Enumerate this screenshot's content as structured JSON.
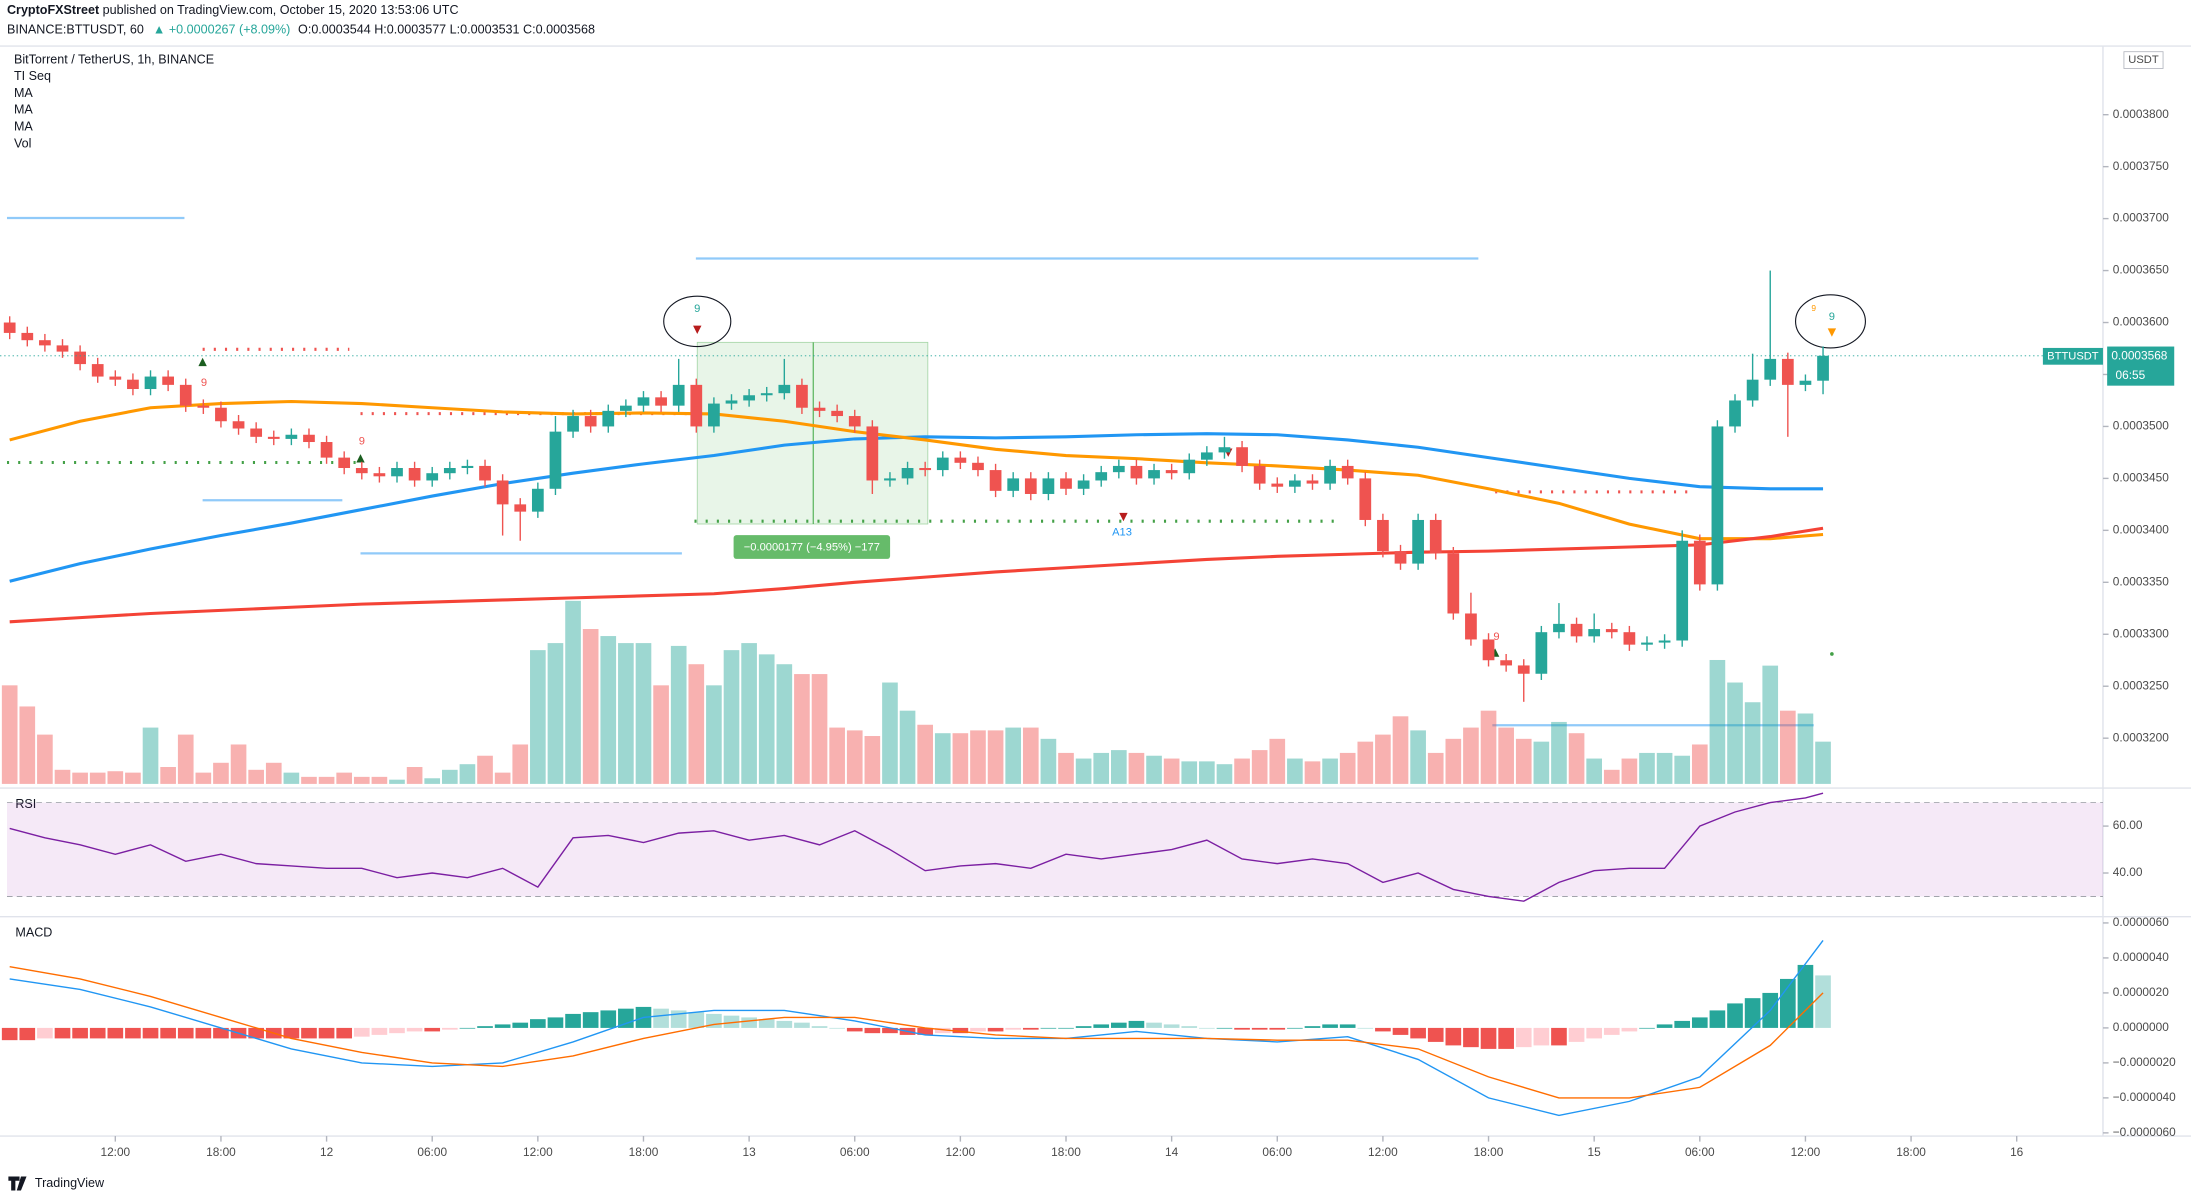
{
  "chart_data": {
    "type": "candlestick",
    "author": "CryptoFXStreet",
    "published": "published on TradingView.com, October 15, 2020 13:53:06 UTC",
    "symbol": "BINANCE:BTTUSDT, 60",
    "change": "▲ +0.0000267 (+8.09%)",
    "ohlc_header": [
      "O:0.0003544",
      "H:0.0003577",
      "L:0.0003531",
      "C:0.0003568"
    ],
    "title": "BitTorrent / TetherUS, 1h, BINANCE",
    "indicators": [
      "TI Seq"
    ],
    "currency": "USDT",
    "price_tag": {
      "symbol": "BTTUSDT",
      "price": "0.0003568",
      "countdown": "06:55"
    },
    "footer": "TradingView",
    "annotations": [
      "9",
      "9",
      "9",
      "9",
      "9",
      "9",
      "A13",
      "−0.0000177 (−4.95%) −177"
    ],
    "up_color": "#26a69a",
    "down_color": "#ef5350",
    "grid": false,
    "xlim": [
      -0.55,
      118.9
    ],
    "xticks": [
      {
        "value": 6,
        "label": "12:00"
      },
      {
        "value": 12,
        "label": "18:00"
      },
      {
        "value": 18,
        "label": "12"
      },
      {
        "value": 24,
        "label": "06:00"
      },
      {
        "value": 30,
        "label": "12:00"
      },
      {
        "value": 36,
        "label": "18:00"
      },
      {
        "value": 42,
        "label": "13"
      },
      {
        "value": 48,
        "label": "06:00"
      },
      {
        "value": 54,
        "label": "12:00"
      },
      {
        "value": 60,
        "label": "18:00"
      },
      {
        "value": 66,
        "label": "14"
      },
      {
        "value": 72,
        "label": "06:00"
      },
      {
        "value": 78,
        "label": "12:00"
      },
      {
        "value": 84,
        "label": "18:00"
      },
      {
        "value": 90,
        "label": "15"
      },
      {
        "value": 96,
        "label": "06:00"
      },
      {
        "value": 102,
        "label": "12:00"
      },
      {
        "value": 108,
        "label": "18:00"
      },
      {
        "value": 114,
        "label": "16"
      }
    ],
    "ylim": [
      0.0003156,
      0.0003866
    ],
    "yticks": [
      {
        "value": 0.00032,
        "label": "0.0003200"
      },
      {
        "value": 0.000325,
        "label": "0.0003250"
      },
      {
        "value": 0.00033,
        "label": "0.0003300"
      },
      {
        "value": 0.000335,
        "label": "0.0003350"
      },
      {
        "value": 0.00034,
        "label": "0.0003400"
      },
      {
        "value": 0.000345,
        "label": "0.0003450"
      },
      {
        "value": 0.00035,
        "label": "0.0003500"
      },
      {
        "value": 0.000355,
        "label": "0.0003550"
      },
      {
        "value": 0.00036,
        "label": "0.0003600"
      },
      {
        "value": 0.000365,
        "label": "0.0003650"
      },
      {
        "value": 0.00037,
        "label": "0.0003700"
      },
      {
        "value": 0.000375,
        "label": "0.0003750"
      },
      {
        "value": 0.00038,
        "label": "0.0003800"
      }
    ],
    "open": [
      0.00036,
      0.000359,
      0.0003583,
      0.0003578,
      0.0003572,
      0.000356,
      0.0003548,
      0.0003545,
      0.0003536,
      0.0003548,
      0.000354,
      0.000352,
      0.0003518,
      0.0003505,
      0.0003498,
      0.000349,
      0.0003488,
      0.0003492,
      0.0003485,
      0.000347,
      0.000346,
      0.0003455,
      0.0003452,
      0.000346,
      0.0003448,
      0.0003455,
      0.000346,
      0.0003462,
      0.0003448,
      0.0003425,
      0.0003418,
      0.000344,
      0.0003495,
      0.000351,
      0.00035,
      0.0003515,
      0.000352,
      0.0003528,
      0.000352,
      0.000354,
      0.00035,
      0.0003522,
      0.0003525,
      0.000353,
      0.0003532,
      0.000354,
      0.0003518,
      0.0003515,
      0.000351,
      0.00035,
      0.0003448,
      0.000345,
      0.000346,
      0.0003458,
      0.000347,
      0.0003465,
      0.0003458,
      0.0003438,
      0.000345,
      0.0003435,
      0.000345,
      0.000344,
      0.0003448,
      0.0003456,
      0.0003462,
      0.000345,
      0.0003458,
      0.0003455,
      0.0003468,
      0.0003475,
      0.000348,
      0.0003462,
      0.0003445,
      0.0003442,
      0.0003448,
      0.0003445,
      0.0003462,
      0.000345,
      0.000341,
      0.000338,
      0.0003368,
      0.000341,
      0.0003378,
      0.000332,
      0.0003295,
      0.0003275,
      0.000327,
      0.0003262,
      0.0003302,
      0.000331,
      0.0003298,
      0.0003305,
      0.0003302,
      0.000329,
      0.0003292,
      0.0003294,
      0.000339,
      0.0003348,
      0.00035,
      0.0003525,
      0.0003545,
      0.0003565,
      0.000354,
      0.0003544
    ],
    "high": [
      0.0003606,
      0.0003596,
      0.0003589,
      0.0003584,
      0.0003578,
      0.0003566,
      0.0003554,
      0.0003551,
      0.0003554,
      0.0003554,
      0.0003546,
      0.0003526,
      0.0003524,
      0.0003511,
      0.0003504,
      0.0003496,
      0.0003498,
      0.0003498,
      0.0003491,
      0.0003476,
      0.0003466,
      0.0003461,
      0.0003466,
      0.0003466,
      0.0003461,
      0.0003466,
      0.0003468,
      0.0003468,
      0.0003454,
      0.0003431,
      0.0003446,
      0.000351,
      0.0003516,
      0.0003516,
      0.0003521,
      0.0003526,
      0.0003534,
      0.0003534,
      0.0003565,
      0.0003546,
      0.0003528,
      0.0003531,
      0.0003536,
      0.0003538,
      0.0003565,
      0.0003546,
      0.0003524,
      0.0003521,
      0.0003516,
      0.0003506,
      0.0003456,
      0.0003466,
      0.0003466,
      0.0003476,
      0.0003476,
      0.0003471,
      0.0003464,
      0.0003456,
      0.0003456,
      0.0003456,
      0.0003456,
      0.0003454,
      0.0003462,
      0.0003468,
      0.0003468,
      0.0003464,
      0.0003464,
      0.0003474,
      0.0003481,
      0.000349,
      0.0003486,
      0.0003468,
      0.0003451,
      0.0003454,
      0.0003454,
      0.0003468,
      0.0003468,
      0.0003456,
      0.0003416,
      0.0003386,
      0.0003416,
      0.0003416,
      0.0003384,
      0.000334,
      0.0003301,
      0.0003281,
      0.0003276,
      0.0003308,
      0.000333,
      0.0003316,
      0.000332,
      0.0003311,
      0.0003308,
      0.0003298,
      0.00033,
      0.00034,
      0.0003396,
      0.0003506,
      0.0003531,
      0.000357,
      0.000365,
      0.0003571,
      0.000355,
      0.0003577
    ],
    "low": [
      0.0003584,
      0.0003577,
      0.0003572,
      0.0003566,
      0.0003554,
      0.0003542,
      0.0003539,
      0.000353,
      0.000353,
      0.0003534,
      0.0003514,
      0.0003512,
      0.0003499,
      0.0003492,
      0.0003484,
      0.0003482,
      0.0003482,
      0.0003479,
      0.0003464,
      0.0003454,
      0.0003449,
      0.0003446,
      0.0003446,
      0.0003442,
      0.0003442,
      0.0003449,
      0.0003454,
      0.0003442,
      0.0003395,
      0.000339,
      0.0003412,
      0.0003434,
      0.0003489,
      0.0003494,
      0.0003494,
      0.0003509,
      0.0003514,
      0.0003514,
      0.0003514,
      0.0003494,
      0.0003494,
      0.0003516,
      0.0003519,
      0.0003524,
      0.0003526,
      0.0003512,
      0.0003509,
      0.0003504,
      0.0003494,
      0.0003435,
      0.0003442,
      0.0003444,
      0.0003452,
      0.0003452,
      0.0003459,
      0.0003452,
      0.0003432,
      0.0003432,
      0.0003429,
      0.0003429,
      0.0003434,
      0.0003434,
      0.0003442,
      0.000345,
      0.0003444,
      0.0003444,
      0.0003449,
      0.0003449,
      0.0003462,
      0.0003469,
      0.0003456,
      0.0003439,
      0.0003436,
      0.0003436,
      0.0003439,
      0.0003439,
      0.0003444,
      0.0003404,
      0.0003374,
      0.0003362,
      0.0003362,
      0.0003372,
      0.0003314,
      0.0003289,
      0.0003269,
      0.0003264,
      0.0003235,
      0.0003256,
      0.0003296,
      0.0003292,
      0.0003292,
      0.0003296,
      0.0003284,
      0.0003284,
      0.0003286,
      0.0003288,
      0.0003342,
      0.0003342,
      0.0003494,
      0.0003519,
      0.0003539,
      0.000349,
      0.0003534,
      0.0003531
    ],
    "close": [
      0.000359,
      0.0003583,
      0.0003578,
      0.0003572,
      0.000356,
      0.0003548,
      0.0003545,
      0.0003536,
      0.0003548,
      0.000354,
      0.000352,
      0.0003518,
      0.0003505,
      0.0003498,
      0.000349,
      0.0003488,
      0.0003492,
      0.0003485,
      0.000347,
      0.000346,
      0.0003455,
      0.0003452,
      0.000346,
      0.0003448,
      0.0003455,
      0.000346,
      0.0003462,
      0.0003448,
      0.0003425,
      0.0003418,
      0.000344,
      0.0003495,
      0.000351,
      0.00035,
      0.0003515,
      0.000352,
      0.0003528,
      0.000352,
      0.000354,
      0.00035,
      0.0003522,
      0.0003525,
      0.000353,
      0.0003532,
      0.000354,
      0.0003518,
      0.0003515,
      0.000351,
      0.00035,
      0.0003448,
      0.000345,
      0.000346,
      0.0003458,
      0.000347,
      0.0003465,
      0.0003458,
      0.0003438,
      0.000345,
      0.0003435,
      0.000345,
      0.000344,
      0.0003448,
      0.0003456,
      0.0003462,
      0.000345,
      0.0003458,
      0.0003455,
      0.0003468,
      0.0003475,
      0.000348,
      0.0003462,
      0.0003445,
      0.0003442,
      0.0003448,
      0.0003445,
      0.0003462,
      0.000345,
      0.000341,
      0.000338,
      0.0003368,
      0.000341,
      0.0003378,
      0.000332,
      0.0003295,
      0.0003275,
      0.000327,
      0.0003262,
      0.0003302,
      0.000331,
      0.0003298,
      0.0003305,
      0.0003302,
      0.000329,
      0.0003292,
      0.0003294,
      0.000339,
      0.0003348,
      0.00035,
      0.0003525,
      0.0003545,
      0.0003565,
      0.000354,
      0.0003544,
      0.0003568
    ],
    "series": [
      {
        "name": "MA",
        "color": "#2196f3",
        "x": [
          0,
          4,
          8,
          12,
          16,
          20,
          24,
          28,
          32,
          36,
          40,
          44,
          48,
          52,
          56,
          60,
          64,
          68,
          72,
          76,
          80,
          84,
          88,
          92,
          96,
          100,
          103
        ],
        "values": [
          0.0003351,
          0.0003368,
          0.0003382,
          0.0003395,
          0.0003407,
          0.000342,
          0.0003433,
          0.0003445,
          0.0003455,
          0.0003464,
          0.0003472,
          0.0003482,
          0.0003488,
          0.000349,
          0.0003489,
          0.000349,
          0.0003492,
          0.0003493,
          0.0003492,
          0.0003487,
          0.000348,
          0.000347,
          0.000346,
          0.000345,
          0.0003442,
          0.000344,
          0.000344
        ]
      },
      {
        "name": "MA",
        "color": "#ff9800",
        "x": [
          0,
          4,
          8,
          12,
          16,
          20,
          24,
          28,
          32,
          36,
          40,
          44,
          48,
          52,
          56,
          60,
          64,
          68,
          72,
          76,
          80,
          84,
          88,
          92,
          96,
          100,
          103
        ],
        "values": [
          0.0003487,
          0.0003505,
          0.0003518,
          0.0003522,
          0.0003524,
          0.0003522,
          0.0003518,
          0.0003514,
          0.0003512,
          0.0003513,
          0.0003512,
          0.0003505,
          0.0003495,
          0.0003487,
          0.0003478,
          0.0003472,
          0.0003469,
          0.0003465,
          0.0003462,
          0.0003458,
          0.0003453,
          0.000344,
          0.0003426,
          0.0003406,
          0.0003392,
          0.0003392,
          0.0003396
        ]
      },
      {
        "name": "MA",
        "color": "#f44336",
        "x": [
          0,
          4,
          8,
          12,
          16,
          20,
          24,
          28,
          32,
          36,
          40,
          44,
          48,
          52,
          56,
          60,
          64,
          68,
          72,
          76,
          80,
          84,
          88,
          92,
          96,
          100,
          103
        ],
        "values": [
          0.0003312,
          0.0003316,
          0.000332,
          0.0003323,
          0.0003326,
          0.0003329,
          0.0003331,
          0.0003333,
          0.0003335,
          0.0003337,
          0.0003339,
          0.0003344,
          0.000335,
          0.0003355,
          0.000336,
          0.0003364,
          0.0003368,
          0.0003372,
          0.0003375,
          0.0003377,
          0.0003379,
          0.000338,
          0.0003382,
          0.0003384,
          0.0003386,
          0.0003394,
          0.0003402
        ]
      }
    ],
    "volume": {
      "name": "Vol",
      "values": [
        70,
        55,
        35,
        10,
        8,
        8,
        9,
        8,
        40,
        12,
        35,
        8,
        15,
        28,
        10,
        15,
        8,
        5,
        5,
        8,
        5,
        5,
        3,
        12,
        4,
        10,
        14,
        20,
        8,
        28,
        95,
        100,
        130,
        110,
        105,
        100,
        100,
        70,
        98,
        85,
        70,
        95,
        100,
        92,
        85,
        78,
        78,
        40,
        38,
        34,
        72,
        52,
        42,
        36,
        36,
        38,
        38,
        40,
        40,
        32,
        22,
        18,
        22,
        24,
        22,
        20,
        18,
        16,
        16,
        14,
        18,
        24,
        32,
        18,
        16,
        18,
        22,
        30,
        35,
        48,
        38,
        22,
        32,
        40,
        52,
        40,
        32,
        30,
        44,
        36,
        18,
        10,
        18,
        22,
        22,
        20,
        28,
        88,
        72,
        58,
        84,
        52,
        50,
        30
      ]
    },
    "rsi": {
      "title": "RSI",
      "color": "#7b1fa2",
      "band": [
        30,
        70
      ],
      "ylim": [
        22,
        75
      ],
      "yticks": [
        {
          "value": 60,
          "label": "60.00"
        },
        {
          "value": 40,
          "label": "40.00"
        }
      ],
      "x": [
        0,
        2,
        4,
        6,
        8,
        10,
        12,
        14,
        16,
        18,
        20,
        22,
        24,
        26,
        28,
        30,
        32,
        34,
        36,
        38,
        40,
        42,
        44,
        46,
        48,
        50,
        52,
        54,
        56,
        58,
        60,
        62,
        64,
        66,
        68,
        70,
        72,
        74,
        76,
        78,
        80,
        82,
        84,
        86,
        88,
        90,
        92,
        94,
        96,
        98,
        100,
        102,
        103
      ],
      "values": [
        59,
        55,
        52,
        48,
        52,
        45,
        48,
        44,
        43,
        42,
        42,
        38,
        40,
        38,
        42,
        34,
        55,
        56,
        53,
        57,
        58,
        54,
        56,
        52,
        58,
        50,
        41,
        43,
        44,
        42,
        48,
        46,
        48,
        50,
        54,
        46,
        44,
        46,
        44,
        36,
        40,
        33,
        30,
        28,
        36,
        41,
        42,
        42,
        60,
        66,
        70,
        72,
        74
      ]
    },
    "macd": {
      "title": "MACD",
      "macd_color": "#2196f3",
      "signal_color": "#ff6d00",
      "ylim": [
        -6.1e-06,
        6.2e-06
      ],
      "yticks": [
        {
          "value": 6e-06,
          "label": "0.0000060"
        },
        {
          "value": 4e-06,
          "label": "0.0000040"
        },
        {
          "value": 2e-06,
          "label": "0.0000020"
        },
        {
          "value": 0,
          "label": "0.0000000"
        },
        {
          "value": -2e-06,
          "label": "−0.0000020"
        },
        {
          "value": -4e-06,
          "label": "−0.0000040"
        },
        {
          "value": -6e-06,
          "label": "−0.0000060"
        }
      ],
      "x": [
        0,
        4,
        8,
        12,
        16,
        20,
        24,
        28,
        32,
        36,
        40,
        44,
        48,
        52,
        56,
        60,
        64,
        68,
        72,
        76,
        80,
        84,
        88,
        92,
        96,
        100,
        103
      ],
      "macd": [
        2.8e-06,
        2.2e-06,
        1.2e-06,
        0,
        -1.2e-06,
        -2e-06,
        -2.2e-06,
        -2e-06,
        -8e-07,
        6e-07,
        1e-06,
        1e-06,
        4e-07,
        -4e-07,
        -6e-07,
        -6e-07,
        -2e-07,
        -6e-07,
        -8e-07,
        -5e-07,
        -1.8e-06,
        -4e-06,
        -5e-06,
        -4.2e-06,
        -2.8e-06,
        1e-06,
        5e-06
      ],
      "signal": [
        3.5e-06,
        2.8e-06,
        1.8e-06,
        6e-07,
        -6e-07,
        -1.4e-06,
        -2e-06,
        -2.2e-06,
        -1.6e-06,
        -6e-07,
        2e-07,
        6e-07,
        6e-07,
        0,
        -4e-07,
        -6e-07,
        -6e-07,
        -6e-07,
        -7e-07,
        -7e-07,
        -1.2e-06,
        -2.8e-06,
        -4e-06,
        -4e-06,
        -3.4e-06,
        -1e-06,
        2e-06
      ],
      "histogram": [
        -7e-07,
        -7e-07,
        -6e-07,
        -6e-07,
        -6e-07,
        -6e-07,
        -6e-07,
        -6e-07,
        -6e-07,
        -6e-07,
        -6e-07,
        -6e-07,
        -6e-07,
        -6e-07,
        -6e-07,
        -6e-07,
        -6e-07,
        -6e-07,
        -6e-07,
        -6e-07,
        -5e-07,
        -4e-07,
        -3e-07,
        -2e-07,
        -2e-07,
        -1e-07,
        0,
        1e-07,
        2e-07,
        3e-07,
        5e-07,
        6e-07,
        8e-07,
        9e-07,
        1e-06,
        1.1e-06,
        1.2e-06,
        1.1e-06,
        1e-06,
        9e-07,
        8e-07,
        7e-07,
        6e-07,
        5e-07,
        4e-07,
        3e-07,
        1e-07,
        0,
        -2e-07,
        -3e-07,
        -3e-07,
        -4e-07,
        -4e-07,
        -3e-07,
        -3e-07,
        -2e-07,
        -2e-07,
        -1e-07,
        -1e-07,
        0,
        0,
        1e-07,
        2e-07,
        3e-07,
        4e-07,
        3e-07,
        2e-07,
        1e-07,
        0,
        0,
        -1e-07,
        -1e-07,
        -1e-07,
        0,
        1e-07,
        2e-07,
        2e-07,
        0,
        -2e-07,
        -4e-07,
        -6e-07,
        -8e-07,
        -1e-06,
        -1.1e-06,
        -1.2e-06,
        -1.2e-06,
        -1.1e-06,
        -1e-06,
        -1e-06,
        -8e-07,
        -6e-07,
        -4e-07,
        -2e-07,
        0,
        2e-07,
        4e-07,
        6e-07,
        1e-06,
        1.4e-06,
        1.7e-06,
        2e-06,
        2.8e-06,
        3.6e-06,
        3e-06
      ]
    }
  }
}
